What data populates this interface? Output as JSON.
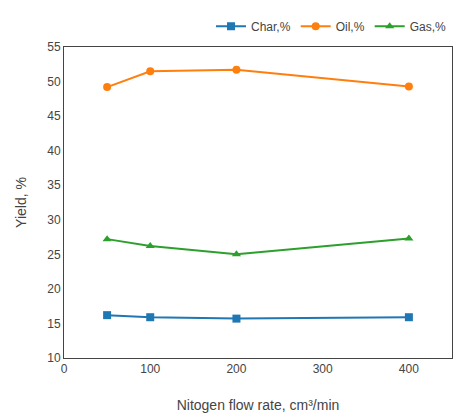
{
  "chart_data": {
    "type": "line",
    "x": [
      50,
      100,
      200,
      400
    ],
    "series": [
      {
        "name": "Char,%",
        "values": [
          16.2,
          15.9,
          15.7,
          15.9
        ],
        "marker": "square"
      },
      {
        "name": "Oil,%",
        "values": [
          49.2,
          51.5,
          51.7,
          49.3
        ],
        "marker": "circle"
      },
      {
        "name": "Gas,%",
        "values": [
          27.2,
          26.2,
          25.0,
          27.3
        ],
        "marker": "triangle-up"
      }
    ],
    "xlabel": "Nitogen flow rate, cm³/min",
    "ylabel": "Yield, %",
    "xlim": [
      0,
      450
    ],
    "ylim": [
      10,
      55
    ],
    "xticks": [
      0,
      100,
      200,
      300,
      400
    ],
    "yticks": [
      10,
      15,
      20,
      25,
      30,
      35,
      40,
      45,
      50,
      55
    ],
    "grid": false,
    "legend": "top"
  }
}
